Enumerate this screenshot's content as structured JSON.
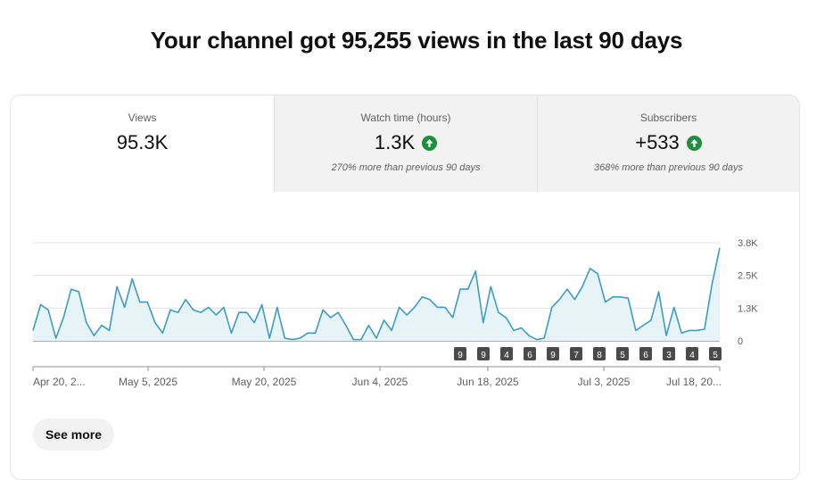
{
  "headline": "Your channel got 95,255 views in the last 90 days",
  "tabs": [
    {
      "label": "Views",
      "value": "95.3K",
      "note": "",
      "trend": ""
    },
    {
      "label": "Watch time (hours)",
      "value": "1.3K",
      "note": "270% more than previous 90 days",
      "trend": "arrow-up-icon"
    },
    {
      "label": "Subscribers",
      "value": "+533",
      "note": "368% more than previous 90 days",
      "trend": "arrow-up-icon"
    }
  ],
  "colors": {
    "line": "#3e9cc3",
    "area": "#e6f3f7",
    "trend_up": "#1e8e3e",
    "marker": "#4a4a4a"
  },
  "chart_data": {
    "type": "area",
    "x_tick_labels": [
      "Apr 20, 2...",
      "May 5, 2025",
      "May 20, 2025",
      "Jun 4, 2025",
      "Jun 18, 2025",
      "Jul 3, 2025",
      "Jul 18, 20..."
    ],
    "y_tick_labels": [
      "3.8K",
      "2.5K",
      "1.3K",
      "0"
    ],
    "ylim": [
      0,
      3800
    ],
    "grid": true,
    "values": [
      400,
      1400,
      1200,
      100,
      900,
      2000,
      1900,
      700,
      200,
      600,
      400,
      2100,
      1300,
      2400,
      1500,
      1500,
      700,
      300,
      1200,
      1100,
      1600,
      1200,
      1100,
      1300,
      1000,
      1300,
      300,
      1100,
      1100,
      700,
      1400,
      100,
      1300,
      100,
      50,
      100,
      300,
      300,
      1200,
      900,
      1100,
      600,
      50,
      50,
      600,
      100,
      800,
      400,
      1300,
      1000,
      1300,
      1700,
      1600,
      1300,
      1300,
      900,
      2000,
      2000,
      2700,
      700,
      2100,
      1100,
      900,
      400,
      500,
      200,
      50,
      100,
      1300,
      1600,
      2000,
      1600,
      2100,
      2800,
      2600,
      1500,
      1700,
      1700,
      1650,
      400,
      600,
      800,
      1900,
      200,
      1300,
      300,
      400,
      400,
      450,
      2200,
      3600
    ],
    "markers": [
      "9",
      "9",
      "4",
      "6",
      "9",
      "7",
      "8",
      "5",
      "6",
      "3",
      "4",
      "5"
    ]
  },
  "actions": {
    "see_more": "See more"
  }
}
